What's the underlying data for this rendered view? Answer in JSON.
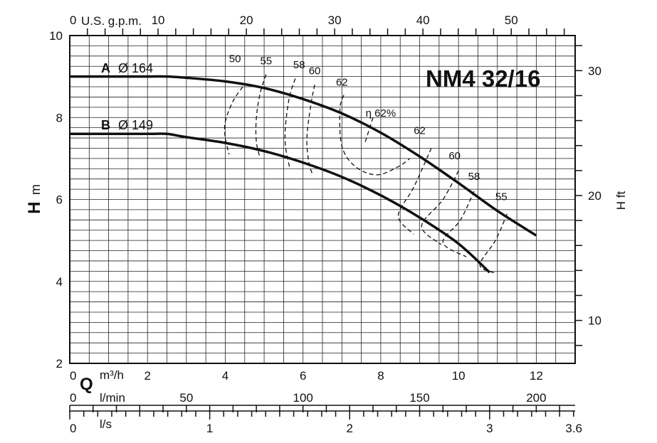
{
  "chart_data": {
    "type": "line",
    "title": "NM4 32/16",
    "x_axes": {
      "q_m3h": {
        "label": "m³/h",
        "prefix": "Q",
        "range": [
          0,
          13
        ],
        "ticks": [
          0,
          2,
          4,
          6,
          8,
          10,
          12
        ],
        "tick_labels": [
          "0",
          "2",
          "4",
          "6",
          "8",
          "10",
          "12"
        ]
      },
      "us_gpm": {
        "label": "U.S. g.p.m.",
        "range": [
          0,
          57.24
        ],
        "ticks": [
          0,
          10,
          20,
          30,
          40,
          50
        ],
        "tick_labels": [
          "0",
          "10",
          "20",
          "30",
          "40",
          "50"
        ]
      },
      "l_min": {
        "label": "l/min",
        "range": [
          0,
          216.67
        ],
        "ticks": [
          0,
          50,
          100,
          150,
          200
        ],
        "tick_labels": [
          "0",
          "50",
          "100",
          "150",
          "200"
        ]
      },
      "l_s": {
        "label": "l/s",
        "range": [
          0,
          3.6
        ],
        "ticks": [
          0,
          1,
          2,
          3,
          3.6
        ],
        "tick_labels": [
          "0",
          "1",
          "2",
          "3",
          "3.6"
        ]
      }
    },
    "y_axes": {
      "h_m": {
        "label_letter": "H",
        "label_unit": "m",
        "range": [
          2,
          10
        ],
        "ticks": [
          2,
          4,
          6,
          8,
          10
        ],
        "tick_labels": [
          "2",
          "4",
          "6",
          "8",
          "10"
        ]
      },
      "h_ft": {
        "label": "H ft",
        "range": [
          6.56,
          32.81
        ],
        "ticks": [
          10,
          20,
          30
        ],
        "tick_labels": [
          "10",
          "20",
          "30"
        ]
      }
    },
    "grid": true,
    "series": [
      {
        "name": "A",
        "label_letter": "A",
        "label_diameter": "Ø 164",
        "points": [
          [
            0,
            9.0
          ],
          [
            1,
            9.0
          ],
          [
            2,
            9.0
          ],
          [
            2.5,
            9.0
          ],
          [
            3,
            8.97
          ],
          [
            4,
            8.88
          ],
          [
            5,
            8.72
          ],
          [
            6,
            8.45
          ],
          [
            7,
            8.1
          ],
          [
            8,
            7.63
          ],
          [
            9,
            7.05
          ],
          [
            10,
            6.4
          ],
          [
            11,
            5.72
          ],
          [
            12,
            5.12
          ]
        ]
      },
      {
        "name": "B",
        "label_letter": "B",
        "label_diameter": "Ø 149",
        "points": [
          [
            0,
            7.6
          ],
          [
            1,
            7.6
          ],
          [
            2,
            7.6
          ],
          [
            2.5,
            7.6
          ],
          [
            3,
            7.52
          ],
          [
            4,
            7.38
          ],
          [
            5,
            7.18
          ],
          [
            6,
            6.9
          ],
          [
            7,
            6.55
          ],
          [
            8,
            6.1
          ],
          [
            9,
            5.56
          ],
          [
            10,
            4.92
          ],
          [
            10.8,
            4.22
          ]
        ]
      }
    ],
    "efficiency_curves": [
      {
        "label": "50",
        "label_at": [
          4.25,
          9.35
        ],
        "points": [
          [
            4.45,
            8.75
          ],
          [
            4.2,
            8.4
          ],
          [
            4.0,
            7.9
          ],
          [
            4.0,
            7.5
          ],
          [
            4.1,
            7.1
          ]
        ]
      },
      {
        "label": "55",
        "label_at": [
          5.05,
          9.3
        ],
        "points": [
          [
            5.05,
            9.05
          ],
          [
            4.9,
            8.6
          ],
          [
            4.8,
            8.0
          ],
          [
            4.8,
            7.4
          ],
          [
            4.9,
            7.0
          ]
        ]
      },
      {
        "label": "58",
        "label_at": [
          5.9,
          9.2
        ],
        "points": [
          [
            5.8,
            8.95
          ],
          [
            5.65,
            8.5
          ],
          [
            5.55,
            7.8
          ],
          [
            5.55,
            7.3
          ],
          [
            5.65,
            6.8
          ]
        ]
      },
      {
        "label": "60",
        "label_at": [
          6.3,
          9.05
        ],
        "points": [
          [
            6.3,
            8.8
          ],
          [
            6.2,
            8.3
          ],
          [
            6.1,
            7.5
          ],
          [
            6.15,
            6.9
          ],
          [
            6.25,
            6.6
          ]
        ]
      },
      {
        "label": "62",
        "label_at": [
          7.0,
          8.78
        ],
        "points": [
          [
            7.05,
            8.55
          ],
          [
            6.95,
            8.2
          ],
          [
            7.0,
            7.3
          ],
          [
            7.35,
            6.8
          ],
          [
            7.9,
            6.6
          ],
          [
            8.45,
            6.8
          ],
          [
            8.75,
            7.0
          ]
        ]
      },
      {
        "label": "η 62%",
        "label_at": [
          8.0,
          8.02
        ],
        "points": [
          [
            7.8,
            8.0
          ],
          [
            7.6,
            7.4
          ]
        ]
      },
      {
        "label": "62",
        "label_at": [
          9.0,
          7.6
        ],
        "points": [
          [
            9.3,
            7.25
          ],
          [
            8.85,
            6.3
          ],
          [
            8.45,
            5.6
          ],
          [
            8.85,
            5.15
          ]
        ]
      },
      {
        "label": "60",
        "label_at": [
          9.9,
          6.98
        ],
        "points": [
          [
            10.0,
            6.7
          ],
          [
            9.6,
            6.0
          ],
          [
            9.05,
            5.35
          ],
          [
            9.55,
            4.9
          ]
        ]
      },
      {
        "label": "58",
        "label_at": [
          10.4,
          6.48
        ],
        "points": [
          [
            10.4,
            6.2
          ],
          [
            10.05,
            5.5
          ],
          [
            9.6,
            4.95
          ],
          [
            10.2,
            4.6
          ]
        ]
      },
      {
        "label": "55",
        "label_at": [
          11.1,
          5.98
        ],
        "points": [
          [
            11.25,
            5.65
          ],
          [
            10.95,
            5.0
          ],
          [
            10.55,
            4.4
          ],
          [
            10.95,
            4.2
          ]
        ]
      }
    ]
  }
}
